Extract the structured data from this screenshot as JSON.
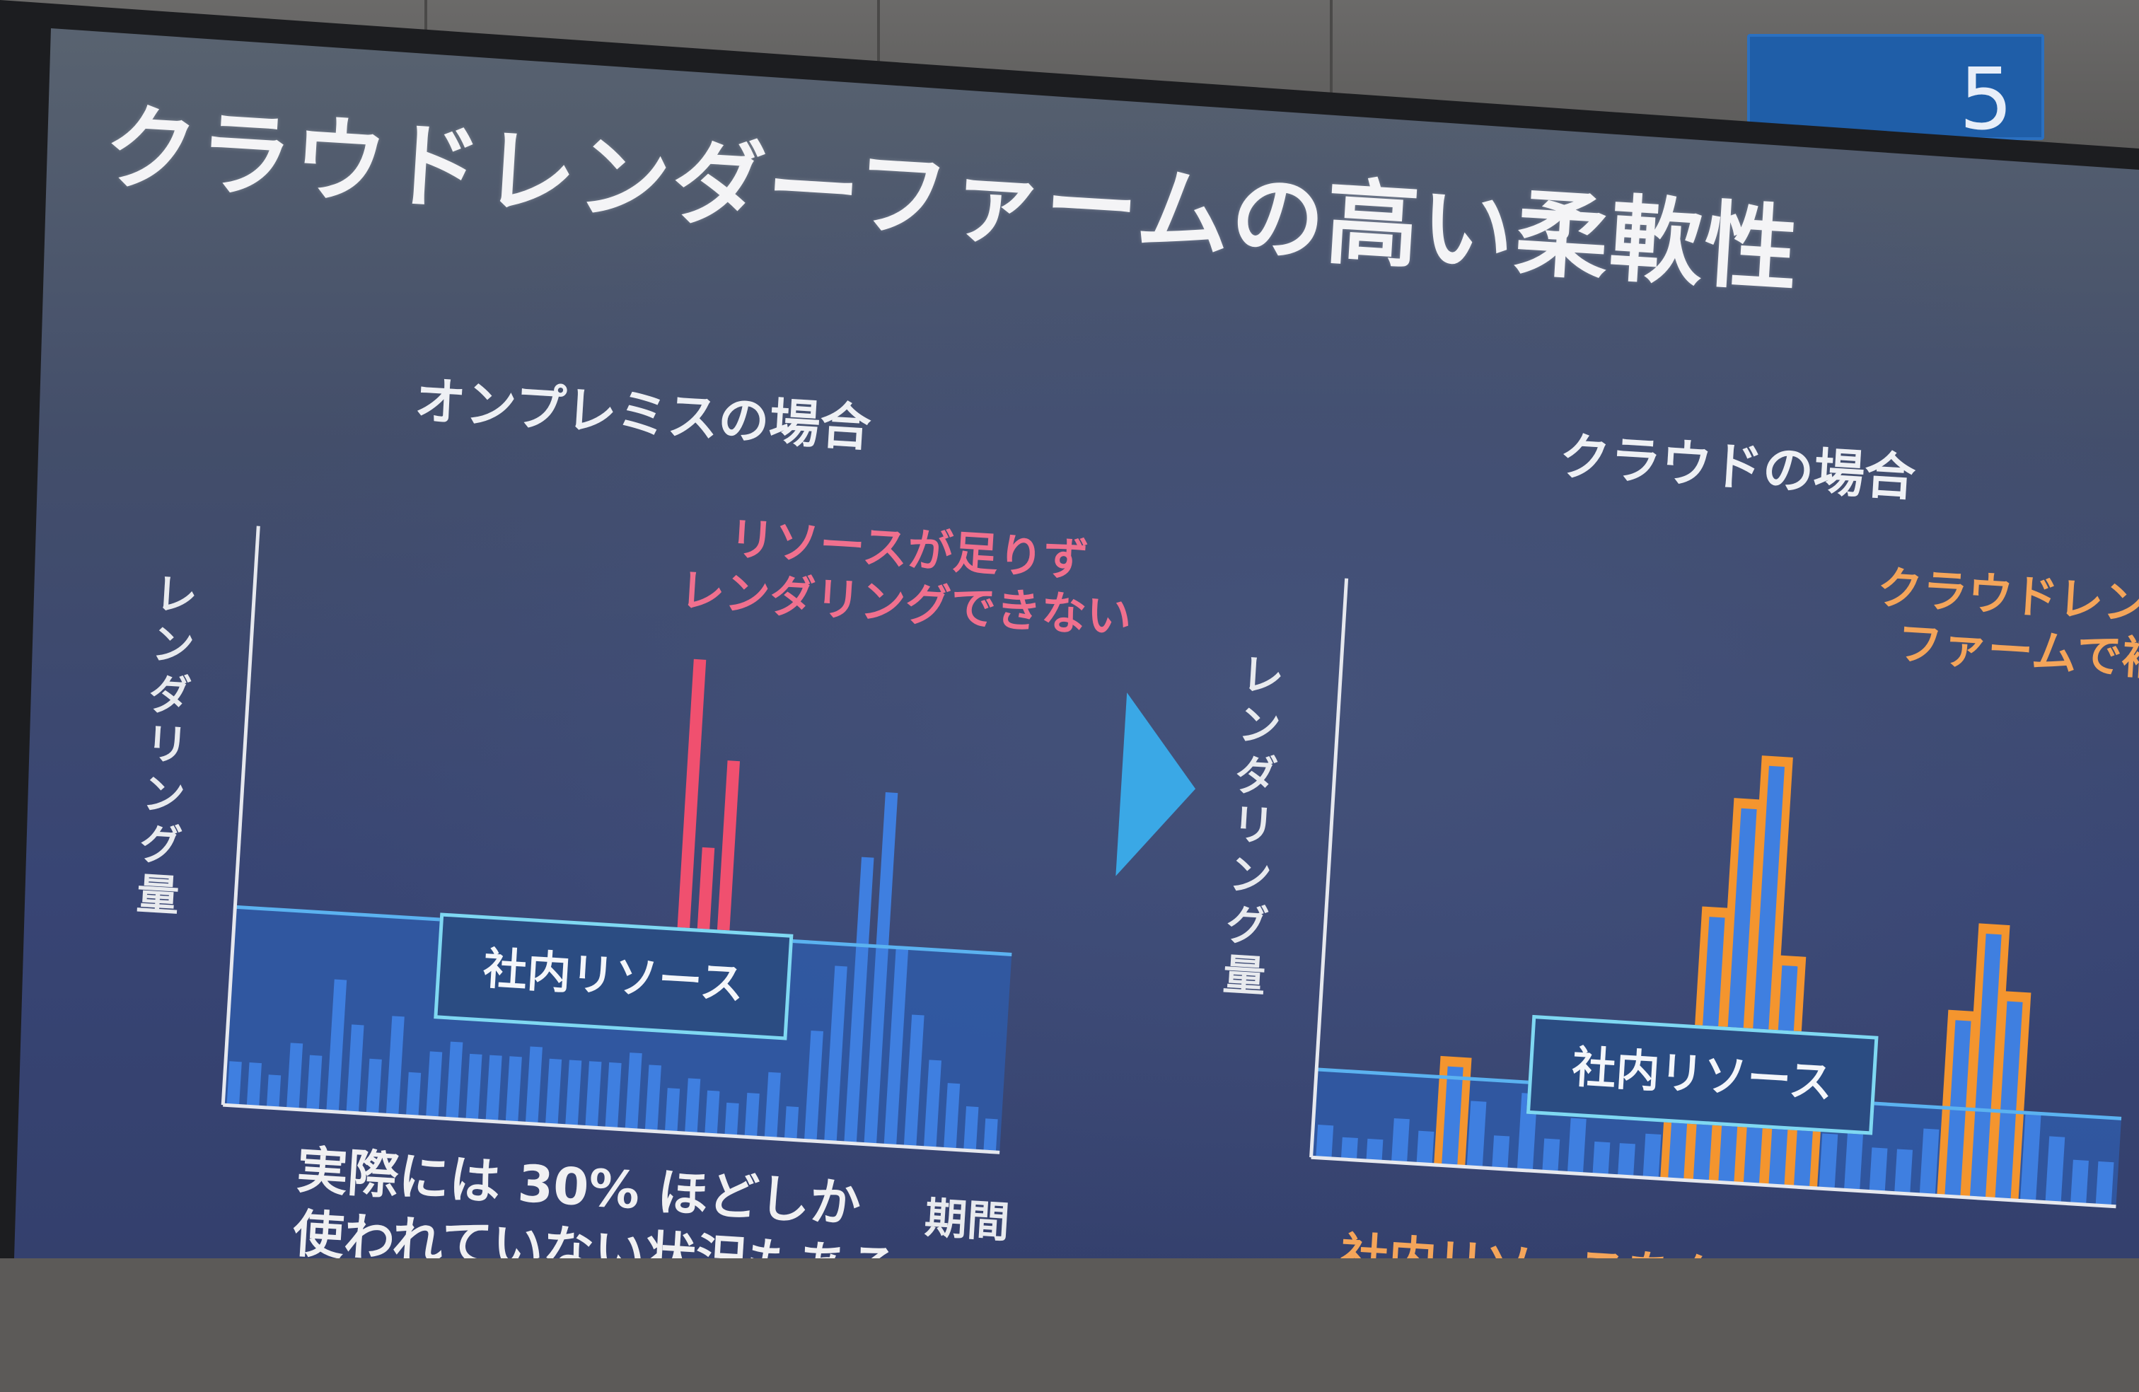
{
  "background": {
    "hall_sign": "5",
    "colors": {
      "wall": "#5c5a58",
      "sign": "#1f5ea8",
      "bezel": "#1c1d20",
      "screen": "#384574"
    }
  },
  "slide": {
    "title": "クラウドレンダーファームの高い柔軟性",
    "left_panel": {
      "heading": "オンプレミスの場合",
      "red_note_line1": "リソースが足りず",
      "red_note_line2": "レンダリングできない",
      "y_axis_label": "レンダリング量",
      "x_axis_label": "期間",
      "resource_box": "社内リソース",
      "bottom_line1": "実際には 30% ほどしか",
      "bottom_line2": "使われていない状況もある"
    },
    "right_panel": {
      "heading": "クラウドの場合",
      "orange_note_line1": "クラウドレンダ",
      "orange_note_line2": "ファームで補",
      "y_axis_label": "レンダリング量",
      "resource_box": "社内リソース",
      "bottom_line1": "社内リソースをクラウドに置き換えて"
    },
    "colors": {
      "blue_bar": "#3f7fe0",
      "capacity_fill": "#2f5aa8",
      "capacity_line": "#5bb2f0",
      "overflow": "#f0506f",
      "cloud": "#f4952e",
      "arrow": "#3aa8e6"
    }
  },
  "chart_data": [
    {
      "type": "bar",
      "name": "onpremise",
      "values": [
        2,
        2,
        1.5,
        3,
        2.5,
        6,
        4,
        2.5,
        4.5,
        2,
        3,
        3.5,
        3,
        3,
        3,
        3.5,
        3,
        3,
        3,
        3,
        3.5,
        3,
        2,
        2.5,
        2,
        1.5,
        2,
        3,
        1.5,
        5,
        8,
        13,
        16,
        9,
        6,
        4,
        3,
        2,
        1.5
      ],
      "overflow": [
        0,
        0,
        0,
        0,
        0,
        0,
        0,
        0,
        0,
        0,
        0,
        0,
        0,
        0,
        0,
        0,
        0,
        0,
        0,
        0,
        0,
        0,
        12.5,
        4,
        8,
        0,
        0,
        0,
        0,
        0,
        0,
        0,
        0,
        0,
        0,
        0,
        0,
        0,
        0
      ],
      "capacity": 9,
      "ylim": [
        0,
        26
      ]
    },
    {
      "type": "bar",
      "name": "cloud",
      "values": [
        1.5,
        1,
        1,
        2,
        1.5,
        4.5,
        3,
        1.5,
        3.5,
        1.5,
        2.5,
        1.5,
        1.5,
        2,
        6,
        12,
        17,
        19,
        10,
        6,
        2.5,
        4,
        2,
        2,
        3,
        8,
        12,
        9,
        4,
        3,
        2,
        2
      ],
      "capacity": 4,
      "ylim": [
        0,
        26
      ]
    }
  ]
}
